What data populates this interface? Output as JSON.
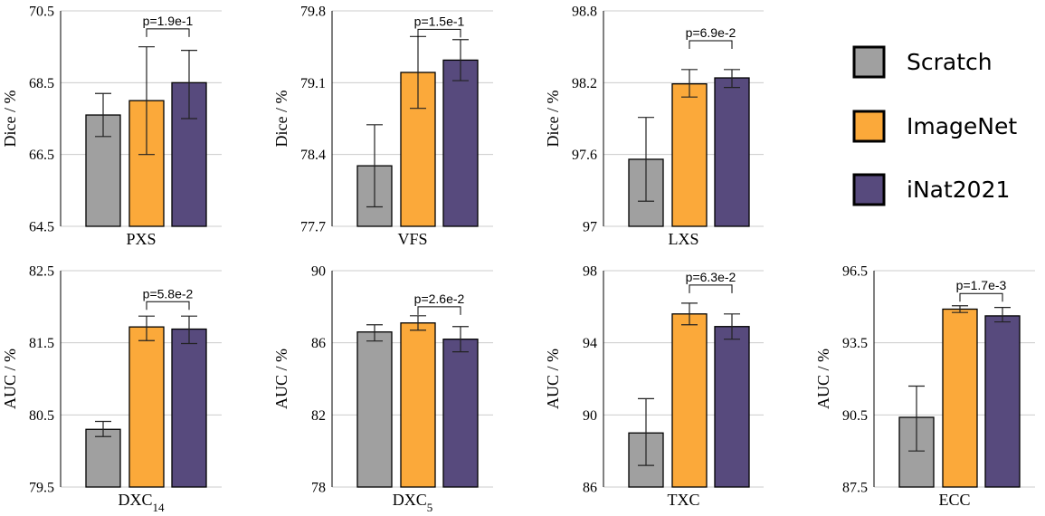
{
  "legend": [
    {
      "name": "Scratch",
      "color": "#a0a0a0"
    },
    {
      "name": "ImageNet",
      "color": "#fba93a"
    },
    {
      "name": "iNat2021",
      "color": "#574a7d"
    }
  ],
  "chart_data": [
    {
      "type": "bar",
      "xlabel": "PXS",
      "ylabel": "Dice / %",
      "ylim": [
        64.5,
        70.5
      ],
      "yticks": [
        "64.5",
        "66.5",
        "68.5",
        "70.5"
      ],
      "values": [
        67.6,
        68.0,
        68.5
      ],
      "errors": [
        [
          67.0,
          68.2
        ],
        [
          66.5,
          69.5
        ],
        [
          67.5,
          69.4
        ]
      ],
      "pvalue": "p=1.9e-1",
      "bracket_y": 70.0
    },
    {
      "type": "bar",
      "xlabel": "VFS",
      "ylabel": "Dice / %",
      "ylim": [
        77.7,
        79.8
      ],
      "yticks": [
        "77.7",
        "78.4",
        "79.1",
        "79.8"
      ],
      "values": [
        78.29,
        79.2,
        79.32
      ],
      "errors": [
        [
          77.89,
          78.69
        ],
        [
          78.85,
          79.55
        ],
        [
          79.12,
          79.52
        ]
      ],
      "pvalue": "p=1.5e-1",
      "bracket_y": 79.62
    },
    {
      "type": "bar",
      "xlabel": "LXS",
      "ylabel": "Dice / %",
      "ylim": [
        97.0,
        98.8
      ],
      "yticks": [
        "97",
        "97.6",
        "98.2",
        "98.8"
      ],
      "values": [
        97.56,
        98.19,
        98.24
      ],
      "errors": [
        [
          97.21,
          97.91
        ],
        [
          98.08,
          98.31
        ],
        [
          98.16,
          98.31
        ]
      ],
      "pvalue": "p=6.9e-2",
      "bracket_y": 98.55
    },
    {
      "type": "bar",
      "xlabel": "DXC",
      "xlabel_sub": "14",
      "ylabel": "AUC / %",
      "ylim": [
        79.5,
        82.5
      ],
      "yticks": [
        "79.5",
        "80.5",
        "81.5",
        "82.5"
      ],
      "values": [
        80.3,
        81.72,
        81.69
      ],
      "errors": [
        [
          80.2,
          80.41
        ],
        [
          81.53,
          81.87
        ],
        [
          81.49,
          81.87
        ]
      ],
      "pvalue": "p=5.8e-2",
      "bracket_y": 82.07
    },
    {
      "type": "bar",
      "xlabel": "DXC",
      "xlabel_sub": "5",
      "ylabel": "AUC / %",
      "ylim": [
        78,
        90
      ],
      "yticks": [
        "78",
        "82",
        "86",
        "90"
      ],
      "values": [
        86.6,
        87.1,
        86.2
      ],
      "errors": [
        [
          86.1,
          87.0
        ],
        [
          86.7,
          87.5
        ],
        [
          85.5,
          86.9
        ]
      ],
      "pvalue": "p=2.6e-2",
      "bracket_y": 88.0
    },
    {
      "type": "bar",
      "xlabel": "TXC",
      "ylabel": "AUC / %",
      "ylim": [
        86,
        98
      ],
      "yticks": [
        "86",
        "90",
        "94",
        "98"
      ],
      "values": [
        89.0,
        95.6,
        94.9
      ],
      "errors": [
        [
          87.2,
          90.9
        ],
        [
          95.0,
          96.2
        ],
        [
          94.2,
          95.6
        ]
      ],
      "pvalue": "p=6.3e-2",
      "bracket_y": 97.2
    },
    {
      "type": "bar",
      "xlabel": "ECC",
      "ylabel": "AUC / %",
      "ylim": [
        87.5,
        96.5
      ],
      "yticks": [
        "87.5",
        "90.5",
        "93.5",
        "96.5"
      ],
      "values": [
        90.4,
        94.9,
        94.62
      ],
      "errors": [
        [
          89.0,
          91.7
        ],
        [
          94.76,
          95.04
        ],
        [
          94.37,
          94.97
        ]
      ],
      "pvalue": "p=1.7e-3",
      "bracket_y": 95.55
    }
  ]
}
